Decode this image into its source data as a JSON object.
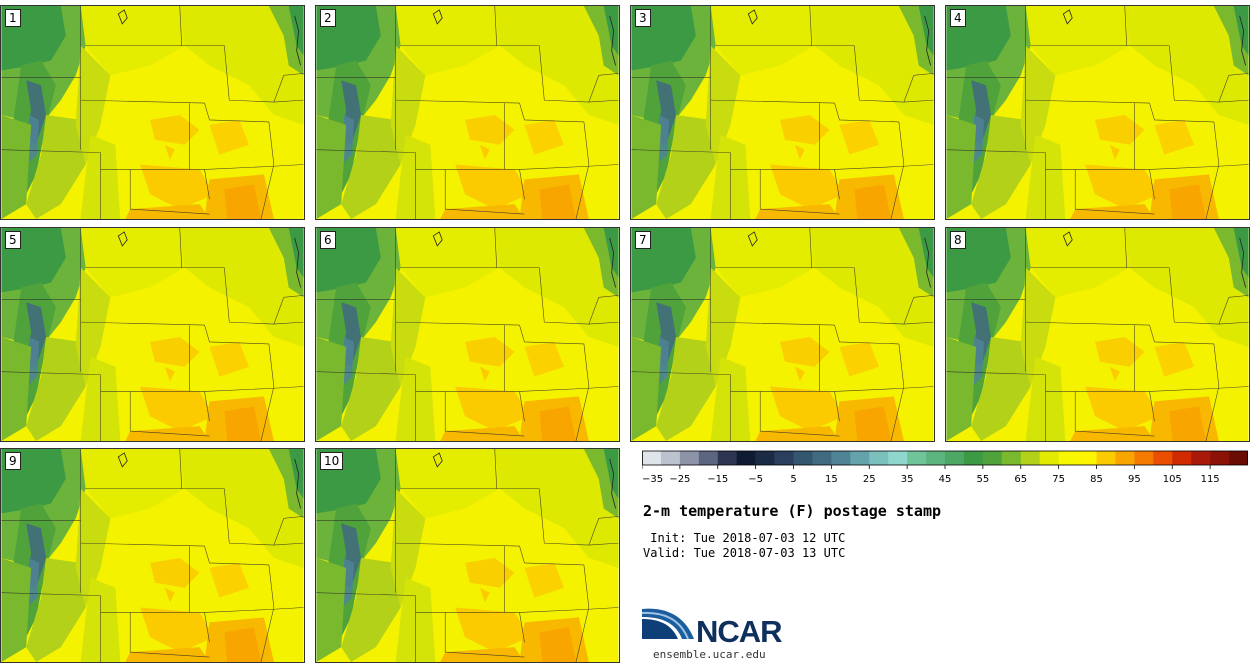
{
  "stamps": [
    {
      "label": "1"
    },
    {
      "label": "2"
    },
    {
      "label": "3"
    },
    {
      "label": "4"
    },
    {
      "label": "5"
    },
    {
      "label": "6"
    },
    {
      "label": "7"
    },
    {
      "label": "8"
    },
    {
      "label": "9"
    },
    {
      "label": "10"
    }
  ],
  "colorbar": {
    "colors": [
      "#dfe3ea",
      "#bcc2ce",
      "#8d94a8",
      "#5d6680",
      "#2d3552",
      "#0f1a33",
      "#1b2b45",
      "#2a3f5e",
      "#35566f",
      "#3f6a80",
      "#4f8496",
      "#65a3ac",
      "#7cc0be",
      "#8fd6cf",
      "#6fc49a",
      "#5cb57f",
      "#4ea865",
      "#3c9a45",
      "#4fa33a",
      "#7ab82e",
      "#b2d118",
      "#e1ea00",
      "#f7f700",
      "#fdf400",
      "#fbcb00",
      "#f8a500",
      "#f57a00",
      "#ea4e00",
      "#cf2a00",
      "#a8190a",
      "#8a1206",
      "#6a0c04"
    ],
    "tick_labels": [
      "-35",
      "-25",
      "-15",
      "-5",
      "5",
      "15",
      "25",
      "35",
      "45",
      "55",
      "65",
      "75",
      "85",
      "95",
      "105",
      "115"
    ]
  },
  "title": "2-m temperature (F) postage stamp",
  "init": " Init: Tue 2018-07-03 12 UTC",
  "valid": "Valid: Tue 2018-07-03 13 UTC",
  "logo": {
    "text": "NCAR",
    "url": "ensemble.ucar.edu"
  }
}
